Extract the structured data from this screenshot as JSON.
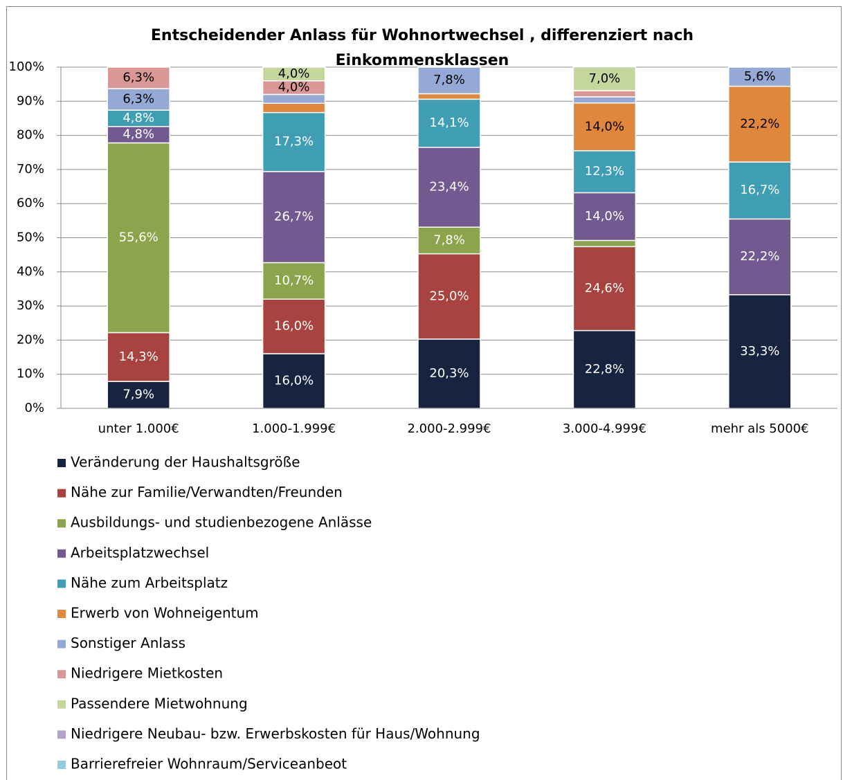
{
  "chart_data": {
    "type": "stacked_bar",
    "title": "Entscheidender Anlass für Wohnortwechsel , differenziert nach Einkommensklassen",
    "categories": [
      "unter 1.000€",
      "1.000-1.999€",
      "2.000-2.999€",
      "3.000-4.999€",
      "mehr als 5000€"
    ],
    "series": [
      {
        "name": "Veränderung der Haushaltsgröße",
        "color": "#17243f",
        "values": [
          7.9,
          16.0,
          20.3,
          22.8,
          33.3
        ],
        "value_labels": [
          "7,9%",
          "16,0%",
          "20,3%",
          "22,8%",
          "33,3%"
        ]
      },
      {
        "name": "Nähe zur Familie/Verwandten/Freunden",
        "color": "#a9433f",
        "values": [
          14.3,
          16.0,
          25.0,
          24.6,
          0
        ],
        "value_labels": [
          "14,3%",
          "16,0%",
          "25,0%",
          "24,6%",
          null
        ]
      },
      {
        "name": "Ausbildungs- und studienbezogene Anlässe",
        "color": "#8aa54b",
        "values": [
          55.6,
          10.7,
          7.8,
          1.8,
          0
        ],
        "value_labels": [
          "55,6%",
          "10,7%",
          "7,8%",
          null,
          null
        ]
      },
      {
        "name": "Arbeitsplatzwechsel",
        "color": "#725a91",
        "values": [
          4.8,
          26.7,
          23.4,
          14.0,
          22.2
        ],
        "value_labels": [
          "4,8%",
          "26,7%",
          "23,4%",
          "14,0%",
          "22,2%"
        ]
      },
      {
        "name": "Nähe zum Arbeitsplatz",
        "color": "#3f9db4",
        "values": [
          4.8,
          17.3,
          14.1,
          12.3,
          16.7
        ],
        "value_labels": [
          "4,8%",
          "17,3%",
          "14,1%",
          "12,3%",
          "16,7%"
        ]
      },
      {
        "name": "Erwerb von Wohneigentum",
        "color": "#e0863d",
        "values": [
          0,
          2.7,
          1.6,
          14.0,
          22.2
        ],
        "value_labels": [
          null,
          null,
          null,
          "14,0%",
          "22,2%"
        ]
      },
      {
        "name": "Sonstiger Anlass",
        "color": "#94a9d5",
        "values": [
          6.3,
          2.6,
          7.8,
          1.8,
          5.6
        ],
        "value_labels": [
          "6,3%",
          null,
          "7,8%",
          null,
          "5,6%"
        ]
      },
      {
        "name": "Niedrigere Mietkosten",
        "color": "#d99796",
        "values": [
          6.3,
          4.0,
          0,
          1.8,
          0
        ],
        "value_labels": [
          "6,3%",
          "4,0%",
          null,
          null,
          null
        ]
      },
      {
        "name": "Passendere Mietwohnung",
        "color": "#c4d79c",
        "values": [
          0,
          4.0,
          0,
          7.0,
          0
        ],
        "value_labels": [
          null,
          "4,0%",
          null,
          "7,0%",
          null
        ]
      },
      {
        "name": "Niedrigere Neubau- bzw. Erwerbskosten für Haus/Wohnung",
        "color": "#b3a3c8",
        "values": [
          0,
          0,
          0,
          0,
          0
        ]
      },
      {
        "name": "Barrierefreier Wohnraum/Serviceanbeot",
        "color": "#93cddd",
        "values": [
          0,
          0,
          0,
          0,
          0
        ]
      }
    ],
    "ylim": [
      0,
      100
    ],
    "yticks": [
      {
        "value": 0,
        "label": "0%"
      },
      {
        "value": 10,
        "label": "10%"
      },
      {
        "value": 20,
        "label": "20%"
      },
      {
        "value": 30,
        "label": "30%"
      },
      {
        "value": 40,
        "label": "40%"
      },
      {
        "value": 50,
        "label": "50%"
      },
      {
        "value": 60,
        "label": "60%"
      },
      {
        "value": 70,
        "label": "70%"
      },
      {
        "value": 80,
        "label": "80%"
      },
      {
        "value": 90,
        "label": "90%"
      },
      {
        "value": 100,
        "label": "100%"
      }
    ],
    "grid": true,
    "legend": "bottom"
  }
}
